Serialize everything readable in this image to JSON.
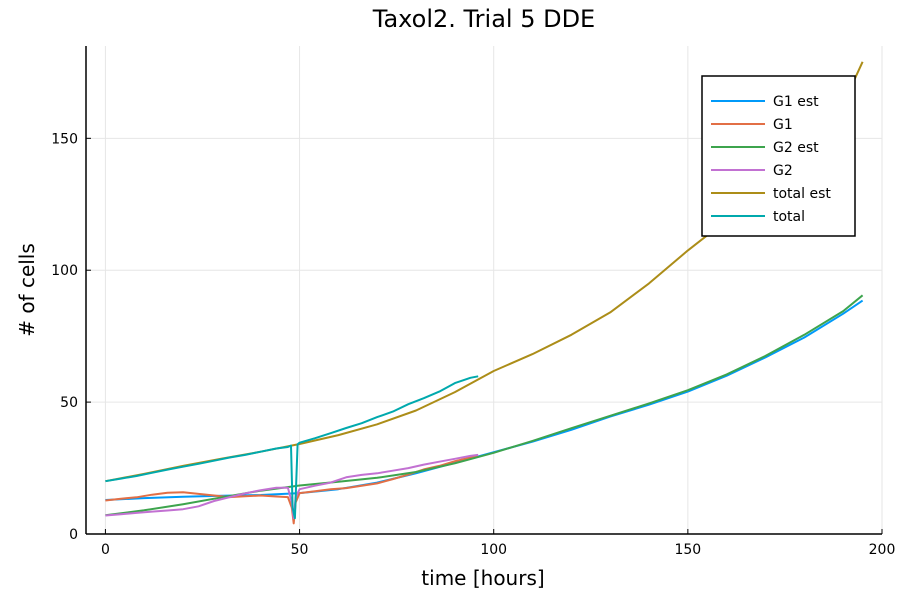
{
  "chart_data": {
    "type": "line",
    "title": "Taxol2. Trial 5 DDE",
    "xlabel": "time [hours]",
    "ylabel": "# of cells",
    "xlim": [
      -5,
      200
    ],
    "ylim": [
      0,
      185
    ],
    "xticks": [
      0,
      50,
      100,
      150,
      200
    ],
    "yticks": [
      0,
      50,
      100,
      150
    ],
    "grid": true,
    "legend_position": "top-right",
    "series": [
      {
        "name": "G1 est",
        "color": "#009af9",
        "x": [
          0,
          10,
          20,
          30,
          40,
          50,
          60,
          70,
          80,
          90,
          100,
          110,
          120,
          130,
          140,
          150,
          160,
          170,
          180,
          190,
          195
        ],
        "y": [
          12.9,
          13.6,
          14.1,
          14.5,
          14.8,
          15.5,
          17.0,
          19.5,
          23.0,
          27.0,
          31.0,
          35.0,
          39.5,
          44.5,
          49.0,
          54.0,
          60.0,
          67.0,
          74.5,
          83.5,
          88.5
        ]
      },
      {
        "name": "G1",
        "color": "#e26f46",
        "x": [
          0,
          4,
          8,
          12,
          16,
          20,
          24,
          28,
          32,
          36,
          40,
          44,
          47,
          48,
          48.5,
          49,
          50,
          54,
          58,
          62,
          66,
          70,
          74,
          78,
          82,
          86,
          90,
          94,
          96
        ],
        "y": [
          12.7,
          13.4,
          13.9,
          14.9,
          15.6,
          15.8,
          15.2,
          14.6,
          14.0,
          14.3,
          14.6,
          14.2,
          14.0,
          10.0,
          4.0,
          12.0,
          15.5,
          16.2,
          17.0,
          17.4,
          18.3,
          19.2,
          20.8,
          22.5,
          24.5,
          25.8,
          27.6,
          29.0,
          29.5
        ]
      },
      {
        "name": "G2 est",
        "color": "#3da44d",
        "x": [
          0,
          10,
          20,
          30,
          40,
          50,
          60,
          70,
          80,
          90,
          100,
          110,
          120,
          130,
          140,
          150,
          160,
          170,
          180,
          190,
          195
        ],
        "y": [
          7.1,
          9.0,
          11.3,
          13.9,
          16.4,
          18.4,
          19.8,
          21.3,
          23.5,
          26.8,
          30.8,
          35.3,
          40.1,
          44.8,
          49.5,
          54.5,
          60.5,
          67.5,
          75.5,
          84.5,
          90.5
        ]
      },
      {
        "name": "G2",
        "color": "#c271d2",
        "x": [
          0,
          4,
          8,
          12,
          16,
          20,
          24,
          28,
          32,
          36,
          40,
          44,
          47,
          48,
          48.5,
          49,
          50,
          54,
          58,
          62,
          66,
          70,
          74,
          78,
          82,
          86,
          90,
          94,
          96
        ],
        "y": [
          7.0,
          7.5,
          8.0,
          8.5,
          8.9,
          9.4,
          10.5,
          12.5,
          14.0,
          15.4,
          16.6,
          17.5,
          17.5,
          12.0,
          6.0,
          14.0,
          17.0,
          18.3,
          19.5,
          21.5,
          22.4,
          23.0,
          24.0,
          25.0,
          26.3,
          27.4,
          28.5,
          29.6,
          30.0
        ]
      },
      {
        "name": "total est",
        "color": "#ac8d18",
        "x": [
          0,
          10,
          20,
          30,
          40,
          50,
          60,
          70,
          80,
          90,
          100,
          110,
          120,
          130,
          140,
          150,
          160,
          170,
          180,
          190,
          195
        ],
        "y": [
          20.0,
          22.8,
          25.8,
          28.6,
          31.2,
          34.1,
          37.5,
          41.6,
          46.8,
          53.8,
          61.8,
          68.2,
          75.5,
          84.0,
          95.0,
          107.5,
          119.0,
          132.0,
          147.0,
          163.0,
          179.0
        ]
      },
      {
        "name": "total",
        "color": "#00a9ad",
        "x": [
          0,
          4,
          8,
          12,
          16,
          20,
          24,
          28,
          32,
          36,
          40,
          44,
          47,
          47.8,
          48.2,
          48.8,
          49.5,
          50,
          54,
          58,
          62,
          66,
          70,
          74,
          78,
          82,
          86,
          90,
          94,
          96
        ],
        "y": [
          20.0,
          21.0,
          22.0,
          23.2,
          24.4,
          25.5,
          26.6,
          27.8,
          29.0,
          30.0,
          31.2,
          32.4,
          33.0,
          33.5,
          10.0,
          6.0,
          34.0,
          34.6,
          36.3,
          38.2,
          40.2,
          42.0,
          44.3,
          46.4,
          49.2,
          51.5,
          54.0,
          57.2,
          59.2,
          59.8
        ]
      }
    ]
  }
}
